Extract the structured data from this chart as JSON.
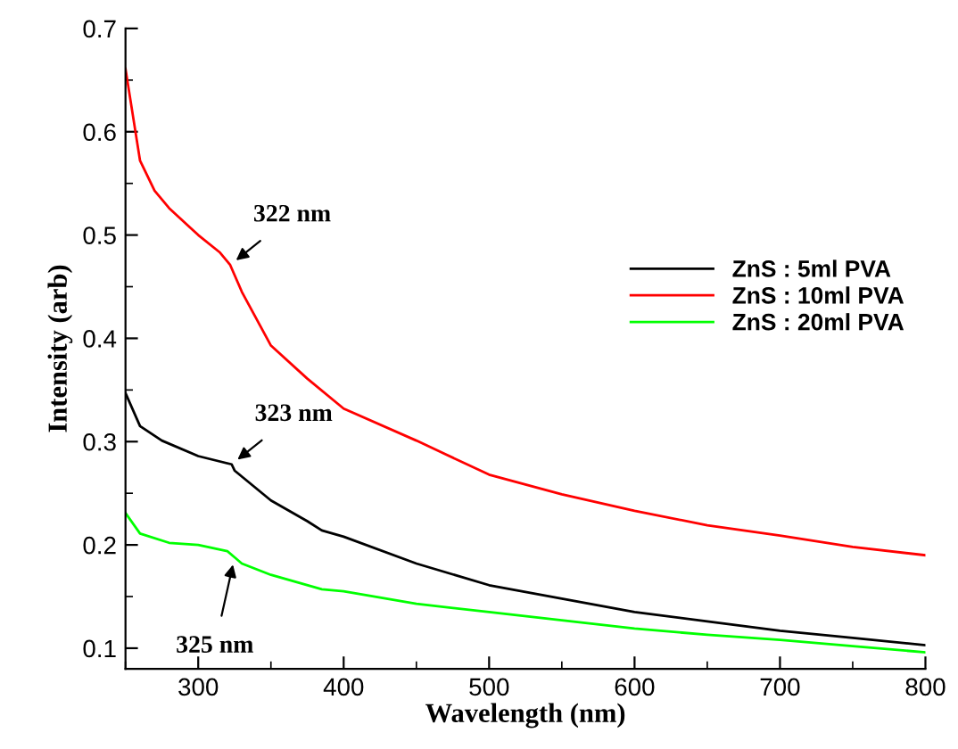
{
  "chart_data": {
    "type": "line",
    "xlabel": "Wavelength (nm)",
    "ylabel": "Intensity (arb)",
    "xlim": [
      250,
      800
    ],
    "ylim": [
      0.08,
      0.7
    ],
    "xticks": [
      300,
      400,
      500,
      600,
      700,
      800
    ],
    "yticks": [
      0.1,
      0.2,
      0.3,
      0.4,
      0.5,
      0.6,
      0.7
    ],
    "grid": false,
    "legend": "right",
    "marker": "none",
    "line_style": "solid",
    "series": [
      {
        "name": "ZnS : 5ml PVA",
        "color": "#000000",
        "x": [
          250,
          260,
          275,
          300,
          323,
          325,
          350,
          375,
          385,
          400,
          450,
          500,
          550,
          600,
          650,
          700,
          750,
          800
        ],
        "values": [
          0.347,
          0.315,
          0.301,
          0.286,
          0.278,
          0.272,
          0.243,
          0.223,
          0.214,
          0.208,
          0.182,
          0.161,
          0.148,
          0.135,
          0.126,
          0.117,
          0.11,
          0.103
        ]
      },
      {
        "name": "ZnS : 10ml PVA",
        "color": "#ff0000",
        "x": [
          250,
          260,
          270,
          280,
          300,
          315,
          322,
          330,
          350,
          375,
          400,
          450,
          500,
          550,
          600,
          650,
          700,
          750,
          800
        ],
        "values": [
          0.661,
          0.572,
          0.543,
          0.526,
          0.5,
          0.483,
          0.471,
          0.445,
          0.393,
          0.361,
          0.332,
          0.301,
          0.268,
          0.249,
          0.233,
          0.219,
          0.209,
          0.198,
          0.19
        ]
      },
      {
        "name": "ZnS : 20ml PVA",
        "color": "#00ff00",
        "x": [
          250,
          260,
          280,
          300,
          320,
          325,
          330,
          350,
          385,
          400,
          450,
          500,
          550,
          600,
          650,
          700,
          750,
          800
        ],
        "values": [
          0.231,
          0.211,
          0.202,
          0.2,
          0.194,
          0.188,
          0.182,
          0.171,
          0.157,
          0.155,
          0.143,
          0.135,
          0.127,
          0.119,
          0.113,
          0.108,
          0.102,
          0.096
        ]
      }
    ],
    "annotations": [
      {
        "text": "322 nm",
        "x": 322,
        "y": 0.471
      },
      {
        "text": "323 nm",
        "x": 323,
        "y": 0.278
      },
      {
        "text": "325 nm",
        "x": 325,
        "y": 0.188
      }
    ]
  }
}
